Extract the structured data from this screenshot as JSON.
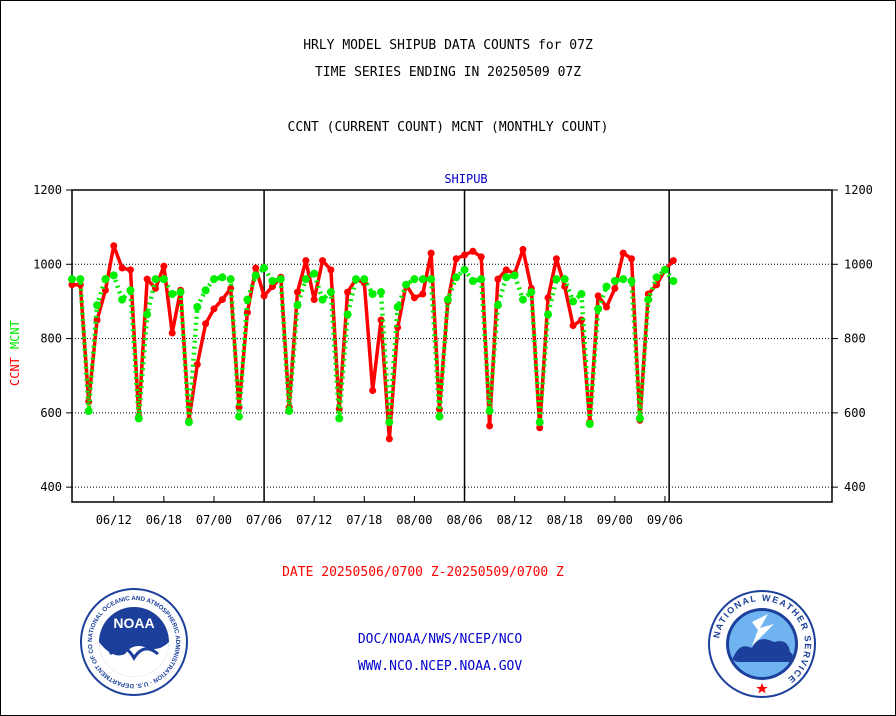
{
  "header": {
    "title_line1": "HRLY MODEL SHIPUB DATA COUNTS for 07Z",
    "title_line2": "TIME SERIES ENDING IN 20250509 07Z",
    "subtitle": "CCNT (CURRENT COUNT) MCNT (MONTHLY COUNT)"
  },
  "footer": {
    "date_range": "DATE 20250506/0700 Z-20250509/0700 Z",
    "org_path": "DOC/NOAA/NWS/NCEP/NCO",
    "website": "WWW.NCO.NCEP.NOAA.GOV"
  },
  "logos": {
    "noaa_text": "NOAA",
    "noaa_ring_text": "NATIONAL OCEANIC AND ATMOSPHERIC ADMINISTRATION · U.S. DEPARTMENT OF COMMERCE ·",
    "nws_ring_text": "NATIONAL WEATHER SERVICE"
  },
  "chart_data": {
    "type": "line",
    "title": "SHIPUB",
    "ylabel_ccnt": "CCNT",
    "ylabel_mcnt": "MCNT",
    "ylim": [
      360,
      1200
    ],
    "yticks": [
      400,
      600,
      800,
      1000,
      1200
    ],
    "x_range": [
      0,
      91
    ],
    "x_ticks": [
      {
        "pos": 5,
        "label": "06/12"
      },
      {
        "pos": 11,
        "label": "06/18"
      },
      {
        "pos": 17,
        "label": "07/00"
      },
      {
        "pos": 23,
        "label": "07/06"
      },
      {
        "pos": 29,
        "label": "07/12"
      },
      {
        "pos": 35,
        "label": "07/18"
      },
      {
        "pos": 41,
        "label": "08/00"
      },
      {
        "pos": 47,
        "label": "08/06"
      },
      {
        "pos": 53,
        "label": "08/12"
      },
      {
        "pos": 59,
        "label": "08/18"
      },
      {
        "pos": 65,
        "label": "09/00"
      },
      {
        "pos": 71,
        "label": "09/06"
      }
    ],
    "day_boundaries": [
      23,
      47,
      71.5
    ],
    "grid": true,
    "colors": {
      "ccnt": "#ff0000",
      "mcnt": "#00ee00",
      "title": "#0000cc"
    },
    "series": [
      {
        "name": "CCNT",
        "values": [
          945,
          945,
          630,
          850,
          930,
          1050,
          990,
          985,
          590,
          960,
          935,
          995,
          815,
          930,
          580,
          730,
          840,
          880,
          905,
          935,
          615,
          870,
          990,
          915,
          940,
          965,
          615,
          925,
          1010,
          905,
          1010,
          985,
          610,
          925,
          960,
          950,
          660,
          850,
          530,
          830,
          945,
          910,
          920,
          1030,
          610,
          900,
          1015,
          1025,
          1035,
          1020,
          565,
          960,
          985,
          975,
          1040,
          935,
          560,
          910,
          1015,
          940,
          835,
          850,
          575,
          915,
          885,
          935,
          1030,
          1015,
          580,
          920,
          945,
          985,
          1010
        ]
      },
      {
        "name": "MCNT",
        "values": [
          960,
          960,
          605,
          890,
          960,
          970,
          905,
          930,
          585,
          865,
          960,
          960,
          920,
          925,
          575,
          885,
          930,
          960,
          965,
          960,
          590,
          905,
          970,
          990,
          955,
          960,
          605,
          890,
          960,
          975,
          905,
          925,
          585,
          865,
          960,
          960,
          920,
          925,
          575,
          885,
          945,
          960,
          960,
          960,
          590,
          905,
          965,
          985,
          955,
          960,
          605,
          890,
          965,
          970,
          905,
          925,
          575,
          865,
          960,
          960,
          900,
          920,
          570,
          880,
          940,
          955,
          960,
          955,
          585,
          905,
          965,
          985,
          955
        ]
      }
    ]
  }
}
